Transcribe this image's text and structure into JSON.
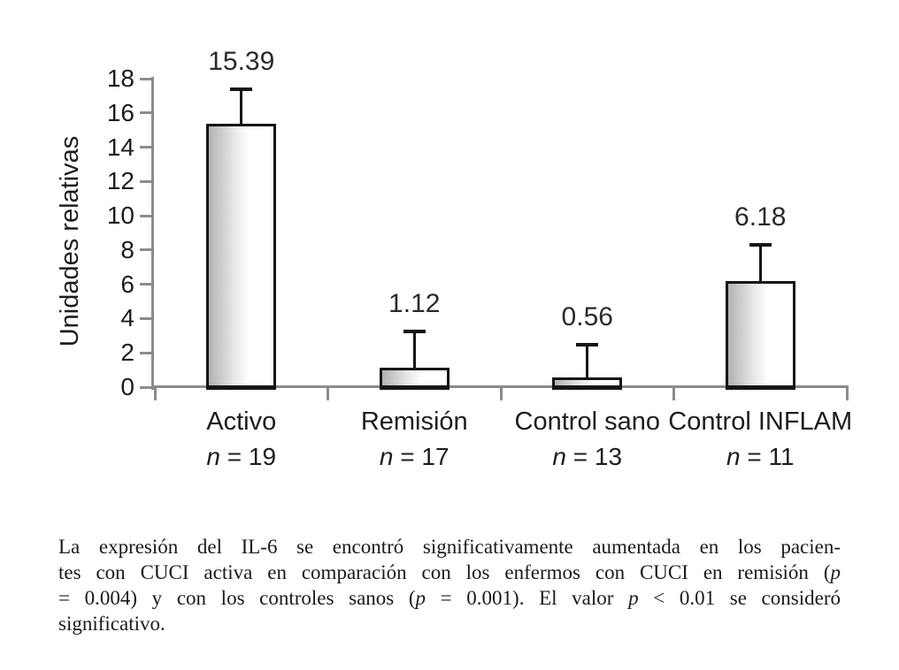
{
  "chart_data": {
    "type": "bar",
    "title": "",
    "xlabel": "",
    "ylabel": "Unidades relativas",
    "ylim": [
      0,
      18
    ],
    "ytick_step": 2,
    "yticks": [
      0,
      2,
      4,
      6,
      8,
      10,
      12,
      14,
      16,
      18
    ],
    "grid": false,
    "legend": false,
    "categories": [
      "Activo",
      "Remisión",
      "Control sano",
      "Control INFLAM"
    ],
    "n_labels": [
      {
        "symbol": "n",
        "rest": " = 19"
      },
      {
        "symbol": "n",
        "rest": " = 17"
      },
      {
        "symbol": "n",
        "rest": " = 13"
      },
      {
        "symbol": "n",
        "rest": " = 11"
      }
    ],
    "values": [
      15.39,
      1.12,
      0.56,
      6.18
    ],
    "value_labels": [
      "15.39",
      "1.12",
      "0.56",
      "6.18"
    ],
    "error_bar_tops": [
      17.4,
      3.26,
      2.48,
      8.28
    ],
    "bar_style": "gradient-gray-to-white"
  },
  "caption": {
    "lines": [
      [
        {
          "t": "La expresión del IL-6 se encontró significativamente aumentada en los pacien-",
          "i": false
        }
      ],
      [
        {
          "t": "tes con CUCI activa en comparación con los enfermos con CUCI en remisión (",
          "i": false
        },
        {
          "t": "p",
          "i": true
        }
      ],
      [
        {
          "t": "= 0.004) y con los controles sanos (",
          "i": false
        },
        {
          "t": "p",
          "i": true
        },
        {
          "t": " = 0.001). El valor ",
          "i": false
        },
        {
          "t": "p",
          "i": true
        },
        {
          "t": " < 0.01 se consideró",
          "i": false
        }
      ],
      [
        {
          "t": "significativo.",
          "i": false
        }
      ]
    ]
  },
  "colors": {
    "background": "#ffffff",
    "axis": "#8c8c8c",
    "bar_border": "#161616",
    "bar_gradient_start": "#b2b2b2",
    "bar_gradient_end": "#ffffff",
    "text": "#1d1d1d"
  }
}
